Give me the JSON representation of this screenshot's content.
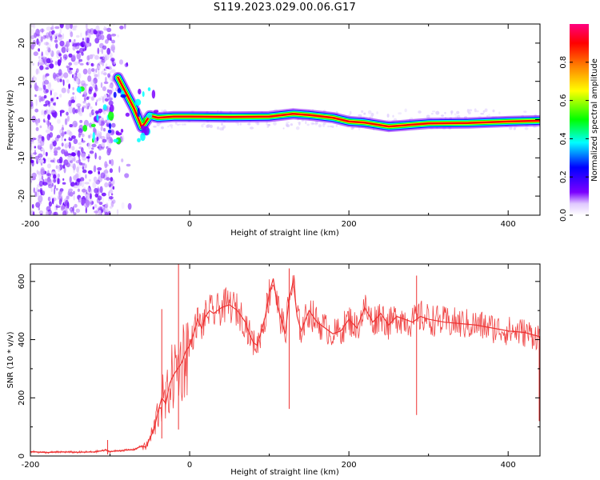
{
  "title": "S119.2023.029.00.06.G17",
  "chart_data": [
    {
      "type": "heatmap",
      "xlabel": "Height of straight line (km)",
      "ylabel": "Frequency (Hz)",
      "xlim": [
        -200,
        440
      ],
      "ylim": [
        -25,
        25
      ],
      "xticks": [
        -200,
        0,
        200,
        400
      ],
      "yticks": [
        -20,
        -10,
        0,
        10,
        20
      ],
      "colorbar": {
        "label": "Normalized spectral amplitude",
        "range": [
          0,
          1
        ],
        "ticks": [
          0.0,
          0.2,
          0.4,
          0.6,
          0.8
        ],
        "colors": [
          "#ffffff",
          "#7b00ff",
          "#0000ff",
          "#00ffff",
          "#00ff00",
          "#ffff00",
          "#ff8000",
          "#ff0000",
          "#ff0080"
        ]
      },
      "ridge": {
        "x": [
          -90,
          -80,
          -70,
          -60,
          -50,
          -40,
          -20,
          0,
          50,
          100,
          130,
          150,
          180,
          200,
          220,
          250,
          300,
          350,
          400,
          440
        ],
        "y": [
          11,
          7,
          3,
          -2,
          1,
          0.5,
          0.8,
          0.8,
          0.7,
          0.8,
          1.5,
          1.2,
          0.5,
          -0.5,
          -0.8,
          -1.8,
          -1.0,
          -0.9,
          -0.5,
          -0.3
        ]
      }
    },
    {
      "type": "line",
      "xlabel": "Height of straight line (km)",
      "ylabel": "SNR (10 * v/v)",
      "xlim": [
        -200,
        440
      ],
      "ylim": [
        0,
        660
      ],
      "xticks": [
        -200,
        0,
        200,
        400
      ],
      "yticks": [
        0,
        200,
        400,
        600
      ],
      "color": "#ee3333",
      "x": [
        -200,
        -180,
        -160,
        -140,
        -120,
        -105,
        -100,
        -90,
        -80,
        -70,
        -60,
        -55,
        -50,
        -45,
        -40,
        -35,
        -30,
        -25,
        -20,
        -15,
        -10,
        -5,
        0,
        5,
        10,
        15,
        20,
        25,
        30,
        40,
        50,
        60,
        70,
        75,
        80,
        85,
        90,
        95,
        100,
        105,
        110,
        115,
        120,
        125,
        130,
        135,
        140,
        150,
        160,
        170,
        180,
        190,
        200,
        210,
        220,
        230,
        240,
        250,
        260,
        270,
        280,
        290,
        300,
        320,
        340,
        360,
        380,
        400,
        420,
        440
      ],
      "y": [
        15,
        12,
        14,
        13,
        14,
        20,
        15,
        18,
        20,
        22,
        35,
        30,
        60,
        90,
        150,
        200,
        180,
        250,
        280,
        300,
        320,
        360,
        380,
        420,
        470,
        440,
        480,
        500,
        490,
        510,
        520,
        500,
        460,
        420,
        390,
        380,
        430,
        480,
        560,
        610,
        520,
        470,
        420,
        540,
        600,
        480,
        430,
        500,
        460,
        440,
        420,
        430,
        470,
        440,
        510,
        460,
        490,
        450,
        480,
        470,
        460,
        480,
        470,
        460,
        455,
        450,
        440,
        430,
        425,
        410
      ],
      "spikes": [
        {
          "x": -103,
          "y": 55
        },
        {
          "x": -35,
          "y": 505
        },
        {
          "x": -14,
          "y": 660
        },
        {
          "x": 125,
          "y": 645
        },
        {
          "x": 285,
          "y": 620
        }
      ]
    }
  ]
}
